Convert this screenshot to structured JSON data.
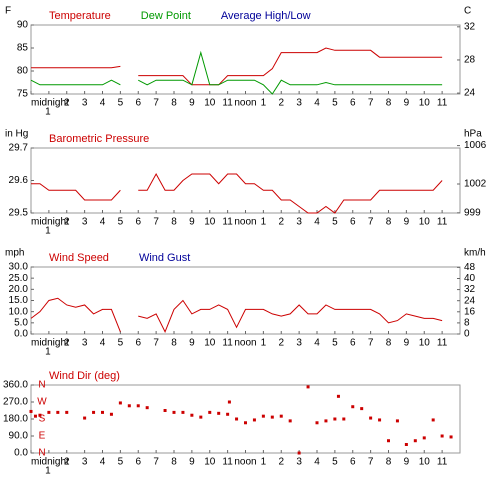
{
  "chart_data": [
    {
      "type": "line",
      "ylabel": "F",
      "y2label": "C",
      "x": [
        0,
        0.5,
        1,
        1.5,
        2,
        2.5,
        3,
        3.5,
        4,
        4.5,
        5,
        5.5,
        6,
        6.5,
        7,
        7.5,
        8,
        8.5,
        9,
        9.5,
        10,
        10.5,
        11,
        11.5,
        12,
        12.5,
        13,
        13.5,
        14,
        14.5,
        15,
        15.5,
        16,
        16.5,
        17,
        17.5,
        18,
        18.5,
        19,
        19.5,
        20,
        20.5,
        21,
        21.5,
        22,
        22.5,
        23
      ],
      "xlim": [
        0,
        24
      ],
      "xticks": [
        {
          "value": 0,
          "label": "midnight"
        },
        {
          "value": 1,
          "label": "1"
        },
        2,
        3,
        4,
        5,
        6,
        7,
        8,
        9,
        10,
        11,
        {
          "value": 12,
          "label": "noon"
        },
        {
          "value": 13,
          "label": "1"
        },
        {
          "value": 14,
          "label": "2"
        },
        {
          "value": 15,
          "label": "3"
        },
        {
          "value": 16,
          "label": "4"
        },
        {
          "value": 17,
          "label": "5"
        },
        {
          "value": 18,
          "label": "6"
        },
        {
          "value": 19,
          "label": "7"
        },
        {
          "value": 20,
          "label": "8"
        },
        {
          "value": 21,
          "label": "9"
        },
        {
          "value": 22,
          "label": "10"
        },
        {
          "value": 23,
          "label": "11"
        }
      ],
      "ylim": [
        75,
        90
      ],
      "yticks": [
        90,
        85,
        80,
        75
      ],
      "y2lim": [
        23.89,
        32.22
      ],
      "y2ticks": [
        32,
        28,
        24
      ],
      "series": [
        {
          "name": "Temperature",
          "color": "#cc0000",
          "values": [
            80.7,
            80.7,
            80.7,
            80.7,
            80.7,
            80.7,
            80.7,
            80.7,
            80.7,
            80.7,
            81,
            null,
            79,
            79,
            79,
            79,
            79,
            79,
            77,
            77,
            77,
            77,
            79,
            79,
            79,
            79,
            79,
            80.5,
            84,
            84,
            84,
            84,
            84,
            85,
            84.5,
            84.5,
            84.5,
            84.5,
            84.5,
            83,
            83,
            83,
            83,
            83,
            83,
            83,
            83
          ]
        },
        {
          "name": "Dew Point",
          "color": "#009900",
          "values": [
            78,
            77,
            77,
            77,
            77,
            77,
            77,
            77,
            77,
            78,
            77,
            null,
            78,
            77,
            78,
            78,
            78,
            78,
            77,
            84,
            77,
            77,
            78,
            78,
            78,
            78,
            77,
            75,
            78,
            77,
            77,
            77,
            77,
            77.5,
            77,
            77,
            77,
            77,
            77,
            77,
            77,
            77,
            77,
            77,
            77,
            77,
            77
          ]
        },
        {
          "name": "Average High/Low",
          "color": "#000099",
          "values": [
            null,
            null,
            null,
            null,
            null,
            null,
            null,
            null,
            null,
            null,
            null,
            null,
            null,
            null,
            null,
            null,
            null,
            null,
            null,
            null,
            null,
            null,
            null,
            null,
            null,
            null,
            null,
            null,
            null,
            null,
            null,
            null,
            null,
            null,
            null,
            null,
            null,
            null,
            null,
            null,
            null,
            null,
            null,
            null,
            null,
            null,
            null
          ]
        }
      ]
    },
    {
      "type": "line",
      "ylabel": "in Hg",
      "y2label": "hPa",
      "x": [
        0,
        0.5,
        1,
        1.5,
        2,
        2.5,
        3,
        3.5,
        4,
        4.5,
        5,
        5.5,
        6,
        6.5,
        7,
        7.5,
        8,
        8.5,
        9,
        9.5,
        10,
        10.5,
        11,
        11.5,
        12,
        12.5,
        13,
        13.5,
        14,
        14.5,
        15,
        15.5,
        16,
        16.5,
        17,
        17.5,
        18,
        18.5,
        19,
        19.5,
        20,
        20.5,
        21,
        21.5,
        22,
        22.5,
        23
      ],
      "xlim": [
        0,
        24
      ],
      "xticks": [
        {
          "value": 0,
          "label": "midnight"
        },
        {
          "value": 1,
          "label": "1"
        },
        2,
        3,
        4,
        5,
        6,
        7,
        8,
        9,
        10,
        11,
        {
          "value": 12,
          "label": "noon"
        },
        {
          "value": 13,
          "label": "1"
        },
        {
          "value": 14,
          "label": "2"
        },
        {
          "value": 15,
          "label": "3"
        },
        {
          "value": 16,
          "label": "4"
        },
        {
          "value": 17,
          "label": "5"
        },
        {
          "value": 18,
          "label": "6"
        },
        {
          "value": 19,
          "label": "7"
        },
        {
          "value": 20,
          "label": "8"
        },
        {
          "value": 21,
          "label": "9"
        },
        {
          "value": 22,
          "label": "10"
        },
        {
          "value": 23,
          "label": "11"
        }
      ],
      "ylim": [
        29.5,
        29.7
      ],
      "yticks": [
        29.7,
        29.6,
        29.5
      ],
      "y2lim": [
        998.98,
        1005.75
      ],
      "y2ticks": [
        1006,
        1002,
        999
      ],
      "series": [
        {
          "name": "Barometric Pressure",
          "color": "#cc0000",
          "values": [
            29.59,
            29.59,
            29.57,
            29.57,
            29.57,
            29.57,
            29.54,
            29.54,
            29.54,
            29.54,
            29.57,
            null,
            29.57,
            29.57,
            29.62,
            29.57,
            29.57,
            29.6,
            29.62,
            29.62,
            29.62,
            29.59,
            29.62,
            29.62,
            29.59,
            29.59,
            29.57,
            29.57,
            29.54,
            29.54,
            29.52,
            29.5,
            29.5,
            29.52,
            29.5,
            29.54,
            29.54,
            29.54,
            29.54,
            29.57,
            29.57,
            29.57,
            29.57,
            29.57,
            29.57,
            29.57,
            29.6
          ]
        }
      ]
    },
    {
      "type": "line",
      "ylabel": "mph",
      "y2label": "km/h",
      "x": [
        0,
        0.5,
        1,
        1.5,
        2,
        2.5,
        3,
        3.5,
        4,
        4.5,
        5,
        5.5,
        6,
        6.5,
        7,
        7.5,
        8,
        8.5,
        9,
        9.5,
        10,
        10.5,
        11,
        11.5,
        12,
        12.5,
        13,
        13.5,
        14,
        14.5,
        15,
        15.5,
        16,
        16.5,
        17,
        17.5,
        18,
        18.5,
        19,
        19.5,
        20,
        20.5,
        21,
        21.5,
        22,
        22.5,
        23
      ],
      "xlim": [
        0,
        24
      ],
      "xticks": [
        {
          "value": 0,
          "label": "midnight"
        },
        {
          "value": 1,
          "label": "1"
        },
        2,
        3,
        4,
        5,
        6,
        7,
        8,
        9,
        10,
        11,
        {
          "value": 12,
          "label": "noon"
        },
        {
          "value": 13,
          "label": "1"
        },
        {
          "value": 14,
          "label": "2"
        },
        {
          "value": 15,
          "label": "3"
        },
        {
          "value": 16,
          "label": "4"
        },
        {
          "value": 17,
          "label": "5"
        },
        {
          "value": 18,
          "label": "6"
        },
        {
          "value": 19,
          "label": "7"
        },
        {
          "value": 20,
          "label": "8"
        },
        {
          "value": 21,
          "label": "9"
        },
        {
          "value": 22,
          "label": "10"
        },
        {
          "value": 23,
          "label": "11"
        }
      ],
      "ylim": [
        0,
        30
      ],
      "yticks": [
        {
          "value": 30,
          "label": "30.0"
        },
        {
          "value": 25,
          "label": "25.0"
        },
        {
          "value": 20,
          "label": "20.0"
        },
        {
          "value": 15,
          "label": "15.0"
        },
        {
          "value": 10,
          "label": "10.0"
        },
        {
          "value": 5,
          "label": "5.0"
        },
        {
          "value": 0,
          "label": "0.0"
        }
      ],
      "y2lim": [
        0,
        48.28
      ],
      "y2ticks": [
        48,
        40,
        32,
        24,
        16,
        8,
        0
      ],
      "series": [
        {
          "name": "Wind Speed",
          "color": "#cc0000",
          "values": [
            7,
            10,
            15,
            16,
            13,
            12,
            13,
            9,
            11,
            11,
            1,
            null,
            8,
            7,
            9,
            1,
            11,
            15,
            9,
            11,
            11,
            13,
            11,
            3,
            11,
            11,
            11,
            9,
            8,
            9,
            13,
            9,
            9,
            13,
            11,
            11,
            11,
            11,
            11,
            9,
            5,
            6,
            9,
            8,
            7,
            7,
            6
          ]
        },
        {
          "name": "Wind Gust",
          "color": "#000099",
          "values": [
            null,
            null,
            null,
            null,
            null,
            null,
            null,
            null,
            null,
            null,
            null,
            null,
            null,
            null,
            null,
            null,
            null,
            null,
            null,
            null,
            null,
            null,
            null,
            null,
            null,
            null,
            null,
            null,
            null,
            null,
            null,
            null,
            null,
            null,
            null,
            null,
            null,
            null,
            null,
            null,
            null,
            null,
            null,
            null,
            null,
            null,
            null
          ]
        }
      ]
    },
    {
      "type": "scatter",
      "xlim": [
        0,
        24
      ],
      "xticks": [
        {
          "value": 0,
          "label": "midnight"
        },
        {
          "value": 1,
          "label": "1"
        },
        2,
        3,
        4,
        5,
        6,
        7,
        8,
        9,
        10,
        11,
        {
          "value": 12,
          "label": "noon"
        },
        {
          "value": 13,
          "label": "1"
        },
        {
          "value": 14,
          "label": "2"
        },
        {
          "value": 15,
          "label": "3"
        },
        {
          "value": 16,
          "label": "4"
        },
        {
          "value": 17,
          "label": "5"
        },
        {
          "value": 18,
          "label": "6"
        },
        {
          "value": 19,
          "label": "7"
        },
        {
          "value": 20,
          "label": "8"
        },
        {
          "value": 21,
          "label": "9"
        },
        {
          "value": 22,
          "label": "10"
        },
        {
          "value": 23,
          "label": "11"
        }
      ],
      "ylim": [
        0,
        360
      ],
      "yticks": [
        {
          "value": 360,
          "label": "360.0"
        },
        {
          "value": 270,
          "label": "270.0"
        },
        {
          "value": 180,
          "label": "180.0"
        },
        {
          "value": 90,
          "label": "90.0"
        },
        {
          "value": 0,
          "label": "0.0"
        }
      ],
      "compass_ticks": [
        {
          "value": 360,
          "label": "N"
        },
        {
          "value": 270,
          "label": "W"
        },
        {
          "value": 180,
          "label": "S"
        },
        {
          "value": 90,
          "label": "E"
        },
        {
          "value": 0,
          "label": "N"
        }
      ],
      "series": [
        {
          "name": "Wind Dir (deg)",
          "color": "#cc0000",
          "x": [
            0,
            0.25,
            0.5,
            1,
            1.5,
            2,
            3,
            3.5,
            4,
            4.5,
            5,
            5.5,
            6,
            6.5,
            7.5,
            8,
            8.5,
            9,
            9.5,
            10,
            10.5,
            11,
            11.1,
            11.5,
            12,
            12.5,
            13,
            13.5,
            14,
            14.5,
            15,
            15.5,
            16,
            16.5,
            17,
            17.2,
            17.5,
            18,
            18.5,
            19,
            19.5,
            20,
            20.5,
            21,
            21.5,
            22,
            22.5,
            23,
            23.5
          ],
          "values": [
            220,
            195,
            200,
            215,
            215,
            215,
            185,
            215,
            215,
            205,
            265,
            250,
            250,
            240,
            225,
            215,
            215,
            200,
            190,
            215,
            210,
            205,
            270,
            180,
            160,
            175,
            195,
            190,
            195,
            170,
            0,
            350,
            160,
            170,
            180,
            300,
            180,
            245,
            235,
            185,
            175,
            65,
            170,
            45,
            65,
            80,
            175,
            90,
            85
          ]
        }
      ]
    }
  ]
}
